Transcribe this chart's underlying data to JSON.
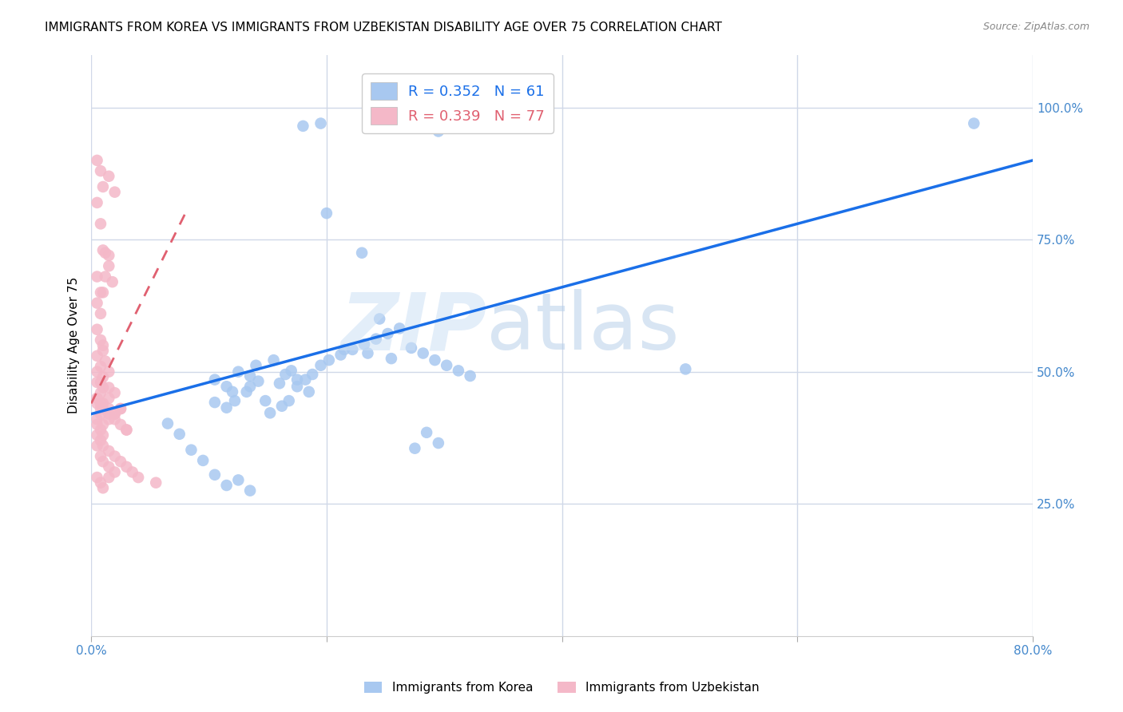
{
  "title": "IMMIGRANTS FROM KOREA VS IMMIGRANTS FROM UZBEKISTAN DISABILITY AGE OVER 75 CORRELATION CHART",
  "source": "Source: ZipAtlas.com",
  "ylabel": "Disability Age Over 75",
  "xlim": [
    0.0,
    0.8
  ],
  "ylim": [
    0.0,
    1.1
  ],
  "legend_korea_R": "0.352",
  "legend_korea_N": "61",
  "legend_uzbek_R": "0.339",
  "legend_uzbek_N": "77",
  "korea_color": "#a8c8f0",
  "uzbek_color": "#f4b8c8",
  "korea_line_color": "#1a6fe8",
  "uzbek_line_color": "#e06070",
  "background_color": "#ffffff",
  "grid_color": "#d0d8e8",
  "title_fontsize": 11,
  "axis_label_color": "#4488cc",
  "korea_line_x0": 0.0,
  "korea_line_y0": 0.42,
  "korea_line_x1": 0.8,
  "korea_line_y1": 0.9,
  "uzbek_line_x0": 0.0,
  "uzbek_line_y0": 0.44,
  "uzbek_line_x1": 0.08,
  "uzbek_line_y1": 0.8,
  "korea_scatter_x": [
    0.18,
    0.195,
    0.295,
    0.2,
    0.23,
    0.245,
    0.105,
    0.115,
    0.12,
    0.125,
    0.135,
    0.14,
    0.155,
    0.16,
    0.17,
    0.105,
    0.115,
    0.122,
    0.132,
    0.135,
    0.142,
    0.148,
    0.152,
    0.162,
    0.168,
    0.175,
    0.182,
    0.188,
    0.195,
    0.202,
    0.212,
    0.222,
    0.232,
    0.242,
    0.252,
    0.262,
    0.272,
    0.282,
    0.292,
    0.302,
    0.312,
    0.322,
    0.275,
    0.285,
    0.295,
    0.505,
    0.065,
    0.075,
    0.085,
    0.095,
    0.105,
    0.115,
    0.125,
    0.135,
    0.165,
    0.175,
    0.185,
    0.215,
    0.235,
    0.255,
    0.75
  ],
  "korea_scatter_y": [
    0.965,
    0.97,
    0.955,
    0.8,
    0.725,
    0.6,
    0.485,
    0.472,
    0.462,
    0.5,
    0.492,
    0.512,
    0.522,
    0.478,
    0.502,
    0.442,
    0.432,
    0.445,
    0.462,
    0.472,
    0.482,
    0.445,
    0.422,
    0.435,
    0.445,
    0.472,
    0.485,
    0.495,
    0.512,
    0.522,
    0.532,
    0.542,
    0.552,
    0.562,
    0.572,
    0.582,
    0.545,
    0.535,
    0.522,
    0.512,
    0.502,
    0.492,
    0.355,
    0.385,
    0.365,
    0.505,
    0.402,
    0.382,
    0.352,
    0.332,
    0.305,
    0.285,
    0.295,
    0.275,
    0.495,
    0.485,
    0.462,
    0.542,
    0.535,
    0.525,
    0.97
  ],
  "uzbek_scatter_x": [
    0.005,
    0.008,
    0.01,
    0.012,
    0.015,
    0.018,
    0.005,
    0.008,
    0.005,
    0.008,
    0.01,
    0.012,
    0.015,
    0.005,
    0.008,
    0.01,
    0.012,
    0.005,
    0.008,
    0.01,
    0.015,
    0.005,
    0.008,
    0.01,
    0.015,
    0.02,
    0.005,
    0.008,
    0.01,
    0.015,
    0.02,
    0.005,
    0.008,
    0.01,
    0.015,
    0.005,
    0.008,
    0.01,
    0.015,
    0.02,
    0.025,
    0.005,
    0.008,
    0.01,
    0.015,
    0.02,
    0.025,
    0.03,
    0.005,
    0.008,
    0.01,
    0.015,
    0.02,
    0.005,
    0.008,
    0.01,
    0.015,
    0.005,
    0.008,
    0.01,
    0.005,
    0.008,
    0.01,
    0.015,
    0.02,
    0.025,
    0.03,
    0.005,
    0.008,
    0.01,
    0.015,
    0.02,
    0.025,
    0.03,
    0.035,
    0.04,
    0.055
  ],
  "uzbek_scatter_y": [
    0.82,
    0.78,
    0.73,
    0.725,
    0.7,
    0.67,
    0.68,
    0.65,
    0.63,
    0.61,
    0.65,
    0.68,
    0.72,
    0.58,
    0.56,
    0.54,
    0.52,
    0.53,
    0.51,
    0.55,
    0.5,
    0.9,
    0.88,
    0.85,
    0.87,
    0.84,
    0.5,
    0.48,
    0.49,
    0.47,
    0.46,
    0.48,
    0.46,
    0.47,
    0.45,
    0.44,
    0.43,
    0.44,
    0.43,
    0.42,
    0.43,
    0.41,
    0.42,
    0.4,
    0.41,
    0.42,
    0.43,
    0.39,
    0.36,
    0.34,
    0.33,
    0.32,
    0.31,
    0.3,
    0.29,
    0.28,
    0.3,
    0.4,
    0.39,
    0.38,
    0.45,
    0.44,
    0.43,
    0.42,
    0.41,
    0.4,
    0.39,
    0.38,
    0.37,
    0.36,
    0.35,
    0.34,
    0.33,
    0.32,
    0.31,
    0.3,
    0.29
  ]
}
